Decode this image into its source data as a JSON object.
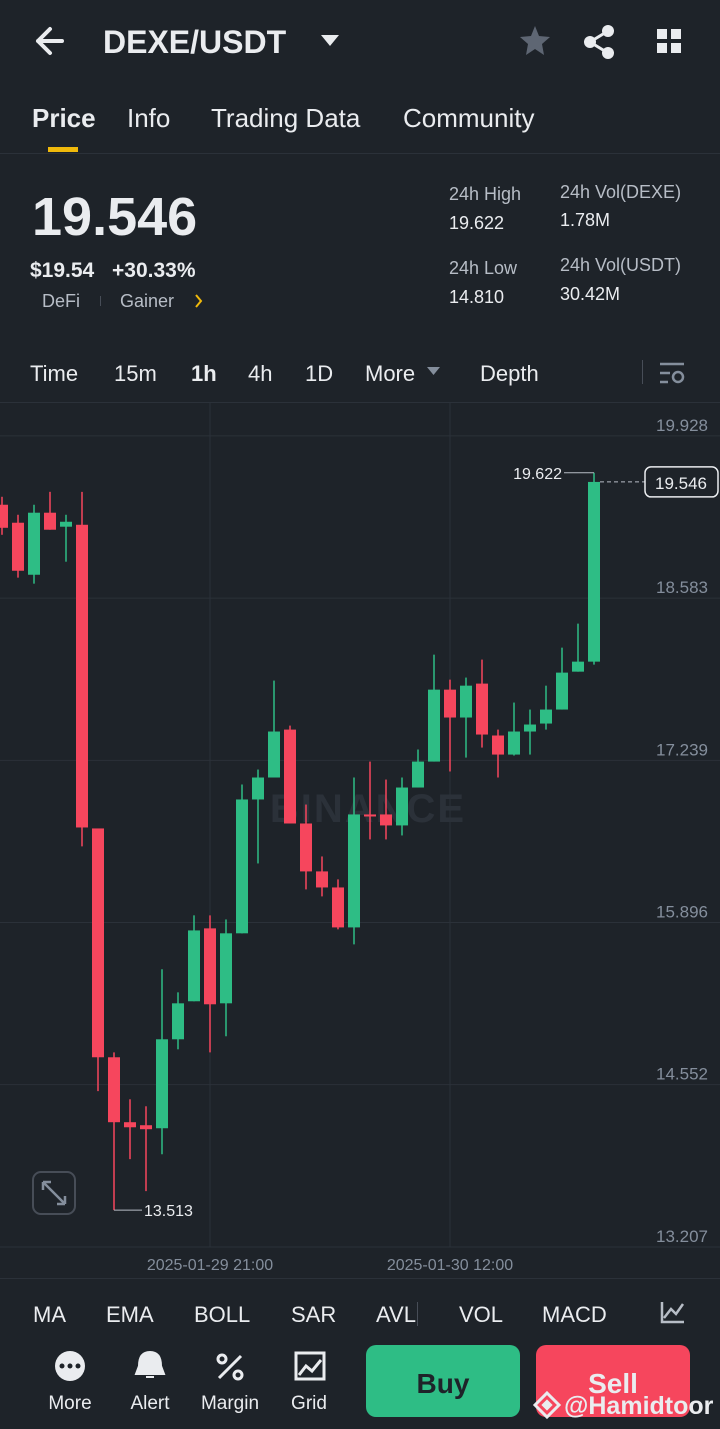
{
  "header": {
    "title": "DEXE/USDT",
    "tabs": [
      "Price",
      "Info",
      "Trading Data",
      "Community"
    ]
  },
  "ticker": {
    "price": "19.546",
    "price_usd": "$19.54",
    "change": "+30.33%",
    "tags": [
      "DeFi",
      "Gainer"
    ],
    "stats": [
      {
        "label": "24h High",
        "value": "19.622"
      },
      {
        "label": "24h Vol(DEXE)",
        "value": "1.78M"
      },
      {
        "label": "24h Low",
        "value": "14.810"
      },
      {
        "label": "24h Vol(USDT)",
        "value": "30.42M"
      }
    ]
  },
  "timeframes": [
    "Time",
    "15m",
    "1h",
    "4h",
    "1D",
    "More"
  ],
  "depth": "Depth",
  "indicators": [
    "MA",
    "EMA",
    "BOLL",
    "SAR",
    "AVL",
    "VOL",
    "MACD"
  ],
  "actions": [
    "More",
    "Alert",
    "Margin",
    "Grid"
  ],
  "buy": "Buy",
  "sell": "Sell",
  "credit": "@Hamidtoor",
  "chart_data": {
    "type": "candlestick",
    "watermark": "BINANCE",
    "up_color": "#2ebd85",
    "down_color": "#f6465d",
    "categories": [
      null,
      null,
      null,
      null,
      null,
      null,
      null,
      null,
      null,
      null,
      null,
      null,
      null,
      "2025-01-29 21:00",
      null,
      null,
      null,
      null,
      null,
      null,
      null,
      null,
      null,
      null,
      null,
      null,
      null,
      null,
      "2025-01-30 12:00",
      null,
      null,
      null,
      null,
      null,
      null,
      null,
      null,
      null
    ],
    "open": [
      19.357,
      19.208,
      18.777,
      19.291,
      19.175,
      19.191,
      16.675,
      14.779,
      14.241,
      14.216,
      14.191,
      14.928,
      15.243,
      15.847,
      15.226,
      15.806,
      16.915,
      17.097,
      17.494,
      16.716,
      16.319,
      16.186,
      15.855,
      16.791,
      16.791,
      16.7,
      17.014,
      17.229,
      17.825,
      17.594,
      17.875,
      17.445,
      17.287,
      17.478,
      17.544,
      17.66,
      17.974,
      18.057
    ],
    "high": [
      19.423,
      19.274,
      19.357,
      19.464,
      19.274,
      19.464,
      16.675,
      14.82,
      14.431,
      14.373,
      15.508,
      15.317,
      15.955,
      15.955,
      15.921,
      17.039,
      17.163,
      17.9,
      17.527,
      16.873,
      16.443,
      16.253,
      17.097,
      17.229,
      17.08,
      17.097,
      17.329,
      18.115,
      17.908,
      17.925,
      18.074,
      17.494,
      17.718,
      17.66,
      17.858,
      18.173,
      18.372,
      19.622
    ],
    "low": [
      19.108,
      18.753,
      18.703,
      19.15,
      18.885,
      16.526,
      14.498,
      13.513,
      13.935,
      13.67,
      13.976,
      14.845,
      15.243,
      14.82,
      14.953,
      15.806,
      16.385,
      17.097,
      16.716,
      16.17,
      16.112,
      15.839,
      15.714,
      16.584,
      16.584,
      16.617,
      17.014,
      17.229,
      17.147,
      17.262,
      17.345,
      17.097,
      17.279,
      17.287,
      17.494,
      17.66,
      17.974,
      18.032
    ],
    "close": [
      19.166,
      18.81,
      19.291,
      19.15,
      19.216,
      16.683,
      14.779,
      14.241,
      14.199,
      14.183,
      14.928,
      15.226,
      15.83,
      15.218,
      15.806,
      16.915,
      17.097,
      17.478,
      16.716,
      16.319,
      16.186,
      15.855,
      16.791,
      16.774,
      16.7,
      17.014,
      17.229,
      17.825,
      17.594,
      17.858,
      17.453,
      17.287,
      17.478,
      17.536,
      17.66,
      17.966,
      18.057,
      19.546
    ],
    "ylim": [
      13.207,
      20.2
    ],
    "yticks": [
      19.928,
      18.583,
      17.239,
      15.896,
      14.552,
      13.207
    ],
    "grid": true,
    "max_marker": 19.622,
    "min_marker": 13.513,
    "last_price": 19.546
  }
}
